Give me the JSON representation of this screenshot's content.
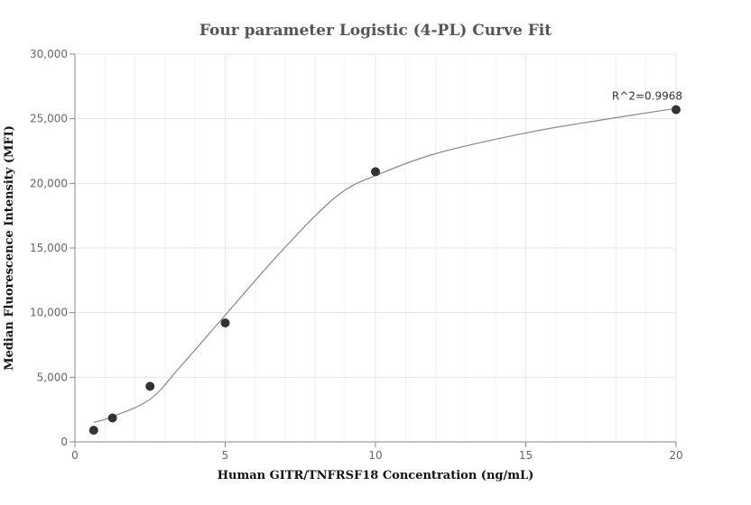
{
  "chart_data": {
    "type": "scatter",
    "title": "Four parameter Logistic (4-PL) Curve Fit",
    "xlabel": "Human GITR/TNFRSF18 Concentration (ng/mL)",
    "ylabel": "Median Fluorescence Intensity (MFI)",
    "xlim": [
      0,
      20
    ],
    "ylim": [
      0,
      30000
    ],
    "x_ticks": [
      0,
      5,
      10,
      15,
      20
    ],
    "y_ticks": [
      0,
      5000,
      10000,
      15000,
      20000,
      25000,
      30000
    ],
    "x_tick_labels": [
      "0",
      "5",
      "10",
      "15",
      "20"
    ],
    "y_tick_labels": [
      "0",
      "5,000",
      "10,000",
      "15,000",
      "20,000",
      "25,000",
      "30,000"
    ],
    "grid": true,
    "series": [
      {
        "kind": "points",
        "color": "#333333",
        "x": [
          0.625,
          1.25,
          2.5,
          5,
          10,
          20
        ],
        "y": [
          900,
          1850,
          4300,
          9200,
          20900,
          25700
        ]
      },
      {
        "kind": "fit-curve",
        "color": "#888888",
        "x": [
          0.625,
          1.25,
          2.5,
          3.5,
          5,
          6.5,
          8,
          9,
          10,
          12,
          15,
          17.5,
          20
        ],
        "y": [
          1500,
          1950,
          3300,
          5800,
          9800,
          13800,
          17500,
          19500,
          20600,
          22300,
          23900,
          24900,
          25800
        ]
      }
    ],
    "annotations": [
      {
        "text": "R^2=0.9968",
        "x": 20,
        "y": 25700
      }
    ]
  }
}
